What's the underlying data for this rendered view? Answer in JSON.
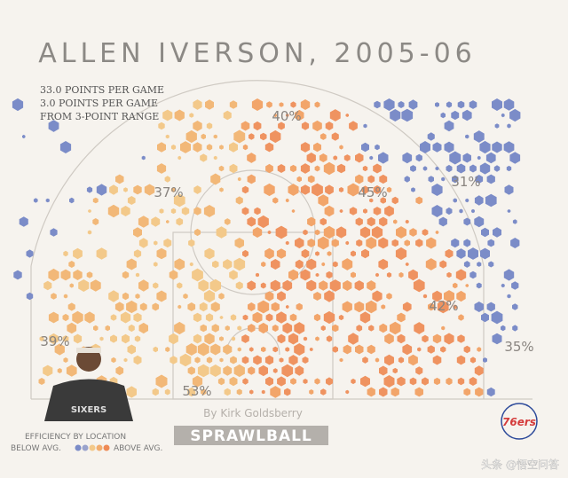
{
  "title": "ALLEN IVERSON, 2005-06",
  "stats": [
    "33.0 POINTS PER GAME",
    "3.0 POINTS PER GAME",
    "FROM 3-POINT RANGE"
  ],
  "zones": [
    "40%",
    "37%",
    "45%",
    "31%",
    "42%",
    "39%",
    "35%",
    "53%"
  ],
  "credit": "By Kirk Goldsberry",
  "brand": "SPRAWLBALL",
  "legend": {
    "title": "EFFICIENCY BY LOCATION",
    "low": "BELOW AVG.",
    "high": "ABOVE AVG."
  },
  "logo": "76ers",
  "watermark": "头条 @悟空问答"
}
